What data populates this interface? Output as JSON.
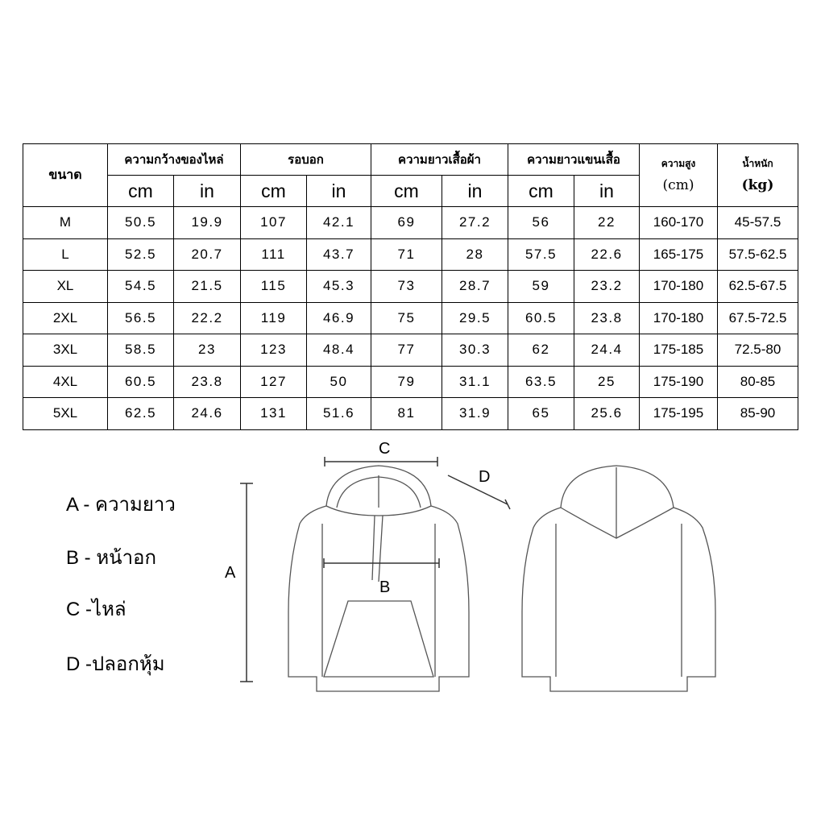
{
  "table": {
    "size_header": "ขนาด",
    "groups": [
      "ความกว้างของไหล่",
      "รอบอก",
      "ความยาวเสื้อผ้า",
      "ความยาวแขนเสื้อ"
    ],
    "units": [
      "cm",
      "in"
    ],
    "height_header": {
      "label": "ความสูง",
      "unit": "(cm)"
    },
    "weight_header": {
      "label": "น้ำหนัก",
      "unit": "(kg)"
    },
    "rows": [
      [
        "M",
        "50.5",
        "19.9",
        "107",
        "42.1",
        "69",
        "27.2",
        "56",
        "22",
        "160-170",
        "45-57.5"
      ],
      [
        "L",
        "52.5",
        "20.7",
        "111",
        "43.7",
        "71",
        "28",
        "57.5",
        "22.6",
        "165-175",
        "57.5-62.5"
      ],
      [
        "XL",
        "54.5",
        "21.5",
        "115",
        "45.3",
        "73",
        "28.7",
        "59",
        "23.2",
        "170-180",
        "62.5-67.5"
      ],
      [
        "2XL",
        "56.5",
        "22.2",
        "119",
        "46.9",
        "75",
        "29.5",
        "60.5",
        "23.8",
        "170-180",
        "67.5-72.5"
      ],
      [
        "3XL",
        "58.5",
        "23",
        "123",
        "48.4",
        "77",
        "30.3",
        "62",
        "24.4",
        "175-185",
        "72.5-80"
      ],
      [
        "4XL",
        "60.5",
        "23.8",
        "127",
        "50",
        "79",
        "31.1",
        "63.5",
        "25",
        "175-190",
        "80-85"
      ],
      [
        "5XL",
        "62.5",
        "24.6",
        "131",
        "51.6",
        "81",
        "31.9",
        "65",
        "25.6",
        "175-195",
        "85-90"
      ]
    ]
  },
  "legend": [
    "A - ความยาว",
    "B - หน้าอก",
    "C -ไหล่",
    "D -ปลอกหุ้ม"
  ],
  "diagram_labels": {
    "a": "A",
    "b": "B",
    "c": "C",
    "d": "D"
  }
}
